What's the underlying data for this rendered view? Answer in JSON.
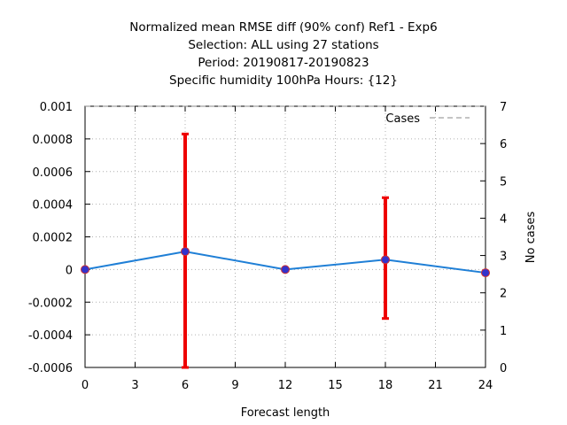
{
  "chart_data": {
    "type": "line",
    "title_lines": [
      "Normalized mean RMSE diff (90% conf) Ref1 - Exp6",
      "Selection: ALL using    27 stations",
      "Period: 20190817-20190823",
      "Specific humidity 100hPa   Hours: {12}"
    ],
    "xlabel": "Forecast length",
    "ylabel": "",
    "y2label": "No cases",
    "xlim": [
      0,
      24
    ],
    "ylim": [
      -0.0006,
      0.001
    ],
    "y2lim": [
      0,
      7
    ],
    "x_ticks": [
      "0",
      "3",
      "6",
      "9",
      "12",
      "15",
      "18",
      "21",
      "24"
    ],
    "y_ticks": [
      "-0.0006",
      "-0.0004",
      "-0.0002",
      "0",
      "0.0002",
      "0.0004",
      "0.0006",
      "0.0008",
      "0.001"
    ],
    "y2_ticks": [
      "0",
      "1",
      "2",
      "3",
      "4",
      "5",
      "6",
      "7"
    ],
    "grid": true,
    "legend": {
      "position": "top-right",
      "entries": [
        "Cases"
      ]
    },
    "series": [
      {
        "x": [
          0,
          6,
          12,
          18,
          24
        ],
        "y": [
          0.0,
          0.00011,
          0.0,
          6e-05,
          -2e-05
        ],
        "color": "#1f7fd6"
      }
    ],
    "error_bars": [
      {
        "x": 6,
        "low": -0.0006,
        "high": 0.00083
      },
      {
        "x": 18,
        "low": -0.0003,
        "high": 0.00044
      }
    ],
    "cases": {
      "x": [
        0,
        6,
        12,
        18,
        24
      ],
      "y": [
        7,
        7,
        7,
        7,
        7
      ]
    },
    "colors": {
      "line": "#1f7fd6",
      "marker": "#3333cc",
      "error": "#ee0000",
      "cases": "#888888"
    }
  }
}
